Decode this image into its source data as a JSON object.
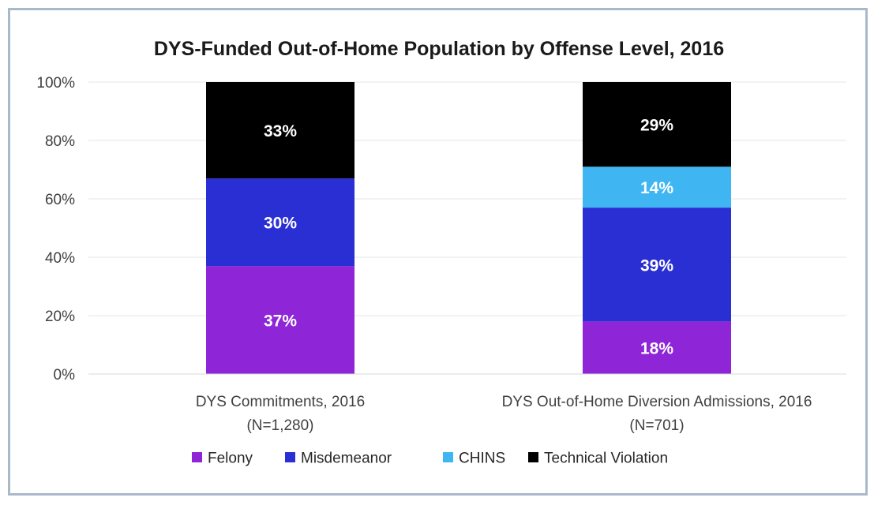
{
  "chart_data": {
    "type": "bar",
    "stacked": true,
    "title": "DYS-Funded Out-of-Home Population by Offense Level, 2016",
    "categories": [
      [
        "DYS Commitments, 2016",
        "(N=1,280)"
      ],
      [
        "DYS Out-of-Home Diversion Admissions, 2016",
        "(N=701)"
      ]
    ],
    "series": [
      {
        "name": "Felony",
        "color": "#8e25d6",
        "values": [
          37,
          18
        ],
        "labels": [
          "37%",
          "18%"
        ]
      },
      {
        "name": "Misdemeanor",
        "color": "#2a2fd4",
        "values": [
          30,
          39
        ],
        "labels": [
          "30%",
          "39%"
        ]
      },
      {
        "name": "CHINS",
        "color": "#3fb6f1",
        "values": [
          0,
          14
        ],
        "labels": [
          "",
          "14%"
        ]
      },
      {
        "name": "Technical Violation",
        "color": "#000000",
        "values": [
          33,
          29
        ],
        "labels": [
          "33%",
          "29%"
        ]
      }
    ],
    "ylim": [
      0,
      100
    ],
    "yticks": [
      0,
      20,
      40,
      60,
      80,
      100
    ],
    "ytick_labels": [
      "0%",
      "20%",
      "40%",
      "60%",
      "80%",
      "100%"
    ],
    "grid": true,
    "legend_position": "bottom"
  }
}
